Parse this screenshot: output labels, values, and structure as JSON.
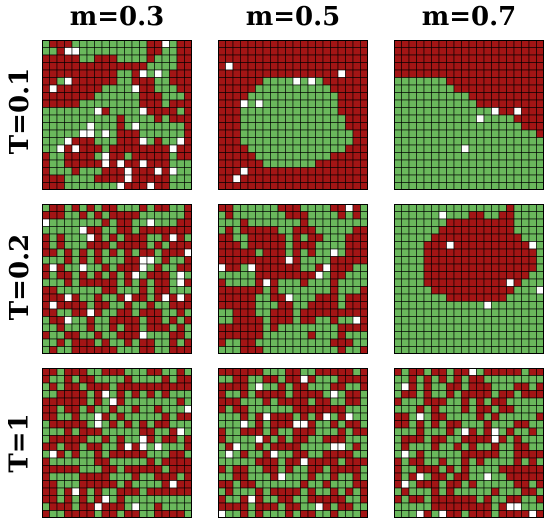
{
  "column_headers": [
    "m=0.3",
    "m=0.5",
    "m=0.7"
  ],
  "row_headers": [
    "T=0.1",
    "T=0.2",
    "T=1"
  ],
  "colors": {
    "state_a": "#a31515",
    "state_b": "#6ab85c",
    "empty": "#ffffff",
    "grid_line": "#000000"
  },
  "lattice": {
    "rows": 20,
    "cols": 20
  },
  "panels": [
    {
      "row": 0,
      "col": 0,
      "m": 0.3,
      "T": 0.1
    },
    {
      "row": 0,
      "col": 1,
      "m": 0.5,
      "T": 0.1
    },
    {
      "row": 0,
      "col": 2,
      "m": 0.7,
      "T": 0.1
    },
    {
      "row": 1,
      "col": 0,
      "m": 0.3,
      "T": 0.2
    },
    {
      "row": 1,
      "col": 1,
      "m": 0.5,
      "T": 0.2
    },
    {
      "row": 1,
      "col": 2,
      "m": 0.7,
      "T": 0.2
    },
    {
      "row": 2,
      "col": 0,
      "m": 0.3,
      "T": 1
    },
    {
      "row": 2,
      "col": 1,
      "m": 0.5,
      "T": 1
    },
    {
      "row": 2,
      "col": 2,
      "m": 0.7,
      "T": 1
    }
  ]
}
